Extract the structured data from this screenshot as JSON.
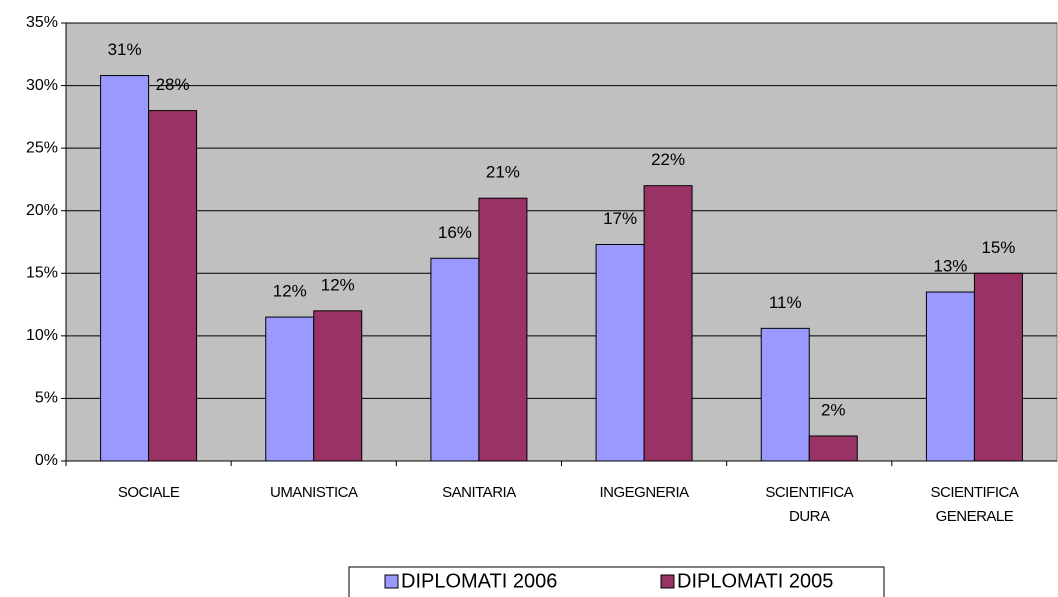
{
  "chart_data": {
    "type": "bar",
    "categories": [
      "SOCIALE",
      "UMANISTICA",
      "SANITARIA",
      "INGEGNERIA",
      "SCIENTIFICA DURA",
      "SCIENTIFICA GENERALE"
    ],
    "series": [
      {
        "name": "DIPLOMATI 2006",
        "color": "#9999ff",
        "values": [
          30.8,
          11.5,
          16.2,
          17.3,
          10.6,
          13.5
        ],
        "value_labels": [
          "31%",
          "12%",
          "16%",
          "17%",
          "11%",
          "13%"
        ]
      },
      {
        "name": "DIPLOMATI 2005",
        "color": "#993366",
        "values": [
          28,
          12,
          21,
          22,
          2,
          15
        ],
        "value_labels": [
          "28%",
          "12%",
          "21%",
          "22%",
          "2%",
          "15%"
        ]
      }
    ],
    "ylim": [
      0,
      35
    ],
    "yticks": [
      {
        "value": 0,
        "label": "0%"
      },
      {
        "value": 5,
        "label": "5%"
      },
      {
        "value": 10,
        "label": "10%"
      },
      {
        "value": 15,
        "label": "15%"
      },
      {
        "value": 20,
        "label": "20%"
      },
      {
        "value": 25,
        "label": "25%"
      },
      {
        "value": 30,
        "label": "30%"
      },
      {
        "value": 35,
        "label": "35%"
      }
    ],
    "grid": true,
    "legend": "bottom"
  }
}
